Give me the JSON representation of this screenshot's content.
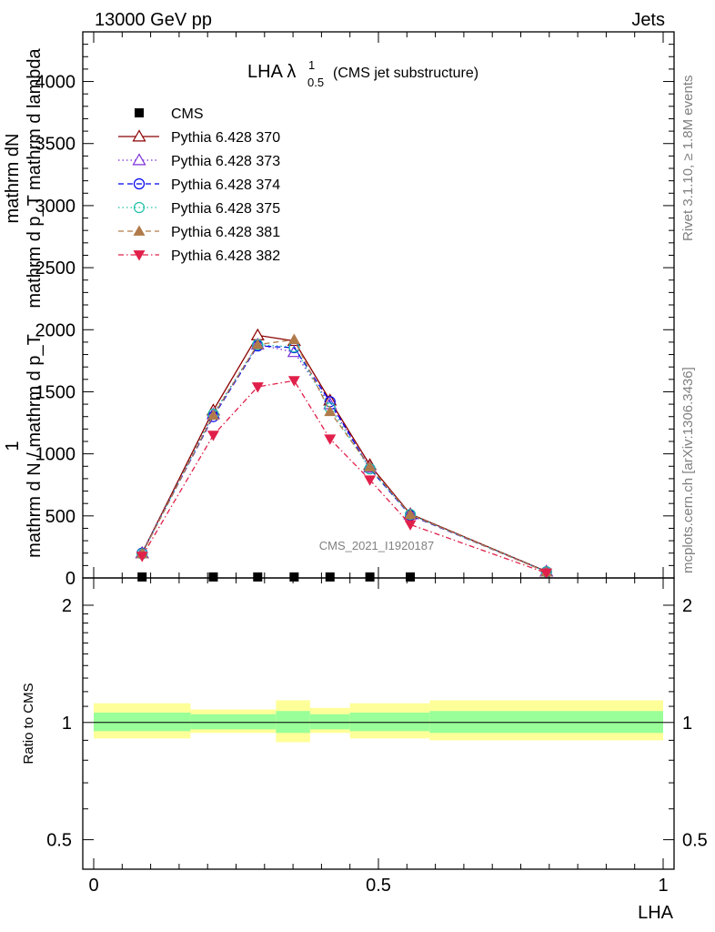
{
  "header": {
    "left": "13000 GeV pp",
    "right": "Jets"
  },
  "side_labels": {
    "rivet": "Rivet 3.1.10, ≥ 1.8M events",
    "mcplots": "mcplots.cern.ch [arXiv:1306.3436]"
  },
  "plot_title": {
    "main": "LHA λ",
    "sup": "1",
    "sub": "0.5",
    "suffix": "(CMS jet substructure)"
  },
  "watermark": "CMS_2021_I1920187",
  "colors": {
    "band_inner": "#99ff99",
    "band_outer": "#ffff99"
  },
  "chart_data": [
    {
      "type": "line",
      "title": "LHA λ^1_0.5 (CMS jet substructure)",
      "ylabel_top": "1",
      "ylabel_num": "mathrm dN",
      "ylabel_num2": "mathrm d p_T mathrm d lambda",
      "ylabel_den": "mathrm d N / mathrm d p_T",
      "xlim": [
        0,
        1
      ],
      "ylim": [
        0,
        4400
      ],
      "y_ticks": [
        {
          "v": 0,
          "label": "0"
        },
        {
          "v": 500,
          "label": "500"
        },
        {
          "v": 1000,
          "label": "1000"
        },
        {
          "v": 1500,
          "label": "1500"
        },
        {
          "v": 2000,
          "label": "2000"
        },
        {
          "v": 2500,
          "label": "2500"
        },
        {
          "v": 3000,
          "label": "3000"
        },
        {
          "v": 3500,
          "label": "3500"
        },
        {
          "v": 4000,
          "label": "4000"
        }
      ],
      "legend_position": "top-left",
      "x": [
        0.085,
        0.21,
        0.288,
        0.352,
        0.415,
        0.485,
        0.556,
        0.795
      ],
      "series": [
        {
          "name": "CMS",
          "color": "#000000",
          "marker": "square",
          "dash": "none",
          "values": [
            8,
            8,
            8,
            8,
            8,
            8,
            8,
            null
          ]
        },
        {
          "name": "Pythia 6.428 370",
          "color": "#8b0000",
          "marker": "triangle-open",
          "dash": "solid",
          "values": [
            200,
            1350,
            1955,
            1910,
            1430,
            910,
            515,
            52
          ]
        },
        {
          "name": "Pythia 6.428 373",
          "color": "#7b2fd9",
          "marker": "triangle-open",
          "dash": "dotted",
          "values": [
            200,
            1320,
            1880,
            1820,
            1400,
            890,
            510,
            51
          ]
        },
        {
          "name": "Pythia 6.428 374",
          "color": "#0000ee",
          "marker": "circle-open",
          "dash": "dashed",
          "values": [
            200,
            1300,
            1870,
            1855,
            1420,
            880,
            505,
            50
          ]
        },
        {
          "name": "Pythia 6.428 375",
          "color": "#20c0a8",
          "marker": "circle-open",
          "dash": "dotted",
          "values": [
            195,
            1320,
            1880,
            1860,
            1370,
            880,
            512,
            50
          ]
        },
        {
          "name": "Pythia 6.428 381",
          "color": "#b07a4a",
          "marker": "triangle-filled",
          "dash": "dashed",
          "values": [
            195,
            1310,
            1880,
            1920,
            1340,
            895,
            510,
            48
          ]
        },
        {
          "name": "Pythia 6.428 382",
          "color": "#e0204a",
          "marker": "triangle-down-filled",
          "dash": "dashdot",
          "values": [
            175,
            1150,
            1540,
            1590,
            1120,
            790,
            430,
            40
          ]
        }
      ]
    },
    {
      "type": "area",
      "xlabel": "LHA",
      "ylabel": "Ratio to CMS",
      "xlim": [
        0,
        1
      ],
      "ylim": [
        0.42,
        2.35
      ],
      "y_scale": "log",
      "x_ticks": [
        {
          "v": 0,
          "label": "0"
        },
        {
          "v": 0.5,
          "label": "0.5"
        },
        {
          "v": 1,
          "label": "1"
        }
      ],
      "y_ticks": [
        {
          "v": 0.5,
          "label": "0.5"
        },
        {
          "v": 1,
          "label": "1"
        },
        {
          "v": 2,
          "label": "2"
        }
      ],
      "bins": [
        0,
        0.17,
        0.25,
        0.32,
        0.38,
        0.45,
        0.52,
        0.59,
        1.0
      ],
      "band_inner": [
        [
          0.95,
          1.06
        ],
        [
          0.96,
          1.05
        ],
        [
          0.96,
          1.05
        ],
        [
          0.94,
          1.07
        ],
        [
          0.96,
          1.05
        ],
        [
          0.95,
          1.06
        ],
        [
          0.95,
          1.06
        ],
        [
          0.94,
          1.07
        ]
      ],
      "band_outer": [
        [
          0.91,
          1.12
        ],
        [
          0.94,
          1.08
        ],
        [
          0.94,
          1.08
        ],
        [
          0.89,
          1.14
        ],
        [
          0.94,
          1.09
        ],
        [
          0.91,
          1.12
        ],
        [
          0.91,
          1.12
        ],
        [
          0.9,
          1.14
        ]
      ],
      "reference": 1
    }
  ]
}
